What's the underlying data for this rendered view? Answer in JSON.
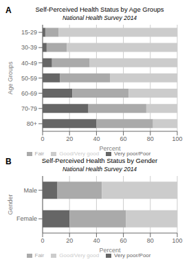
{
  "chart_data": [
    {
      "type": "bar",
      "orientation": "horizontal",
      "stacked": true,
      "title": "Self-Perceived Health Status by Age Groups",
      "subtitle": "National Health Survey 2014",
      "annotations": [
        "A"
      ],
      "xlabel": "Percent",
      "ylabel": "Age Groups",
      "categories": [
        "80+",
        "70-79",
        "60-69",
        "50-59",
        "40-49",
        "30-39",
        "15-29"
      ],
      "series": [
        {
          "name": "Very poor/Poor",
          "color": "#666666",
          "values": [
            40,
            34,
            22,
            13,
            7,
            3,
            2
          ]
        },
        {
          "name": "Fair",
          "color": "#aaaaaa",
          "values": [
            42,
            43,
            42,
            37,
            28,
            15,
            10
          ]
        },
        {
          "name": "Good/Very good",
          "color": "#cccccc",
          "values": [
            18,
            23,
            36,
            50,
            65,
            82,
            88
          ]
        }
      ],
      "xlim": [
        0,
        100
      ],
      "xticks": [
        0,
        20,
        40,
        60,
        80,
        100
      ],
      "grid": true,
      "legend": "bottom"
    },
    {
      "type": "bar",
      "orientation": "horizontal",
      "stacked": true,
      "title": "Self-Perceived Health Status by Gender",
      "subtitle": "National Health Survey 2014",
      "annotations": [
        "B"
      ],
      "xlabel": "Percent",
      "ylabel": "Gender",
      "categories": [
        "Female",
        "Male"
      ],
      "series": [
        {
          "name": "Very poor/Poor",
          "color": "#666666",
          "values": [
            20,
            11
          ]
        },
        {
          "name": "Fair",
          "color": "#aaaaaa",
          "values": [
            42,
            33
          ]
        },
        {
          "name": "Good/Very good",
          "color": "#cccccc",
          "values": [
            38,
            56
          ]
        }
      ],
      "xlim": [
        0,
        100
      ],
      "xticks": [
        0,
        20,
        40,
        60,
        80,
        100
      ],
      "grid": true,
      "legend": "bottom"
    }
  ]
}
